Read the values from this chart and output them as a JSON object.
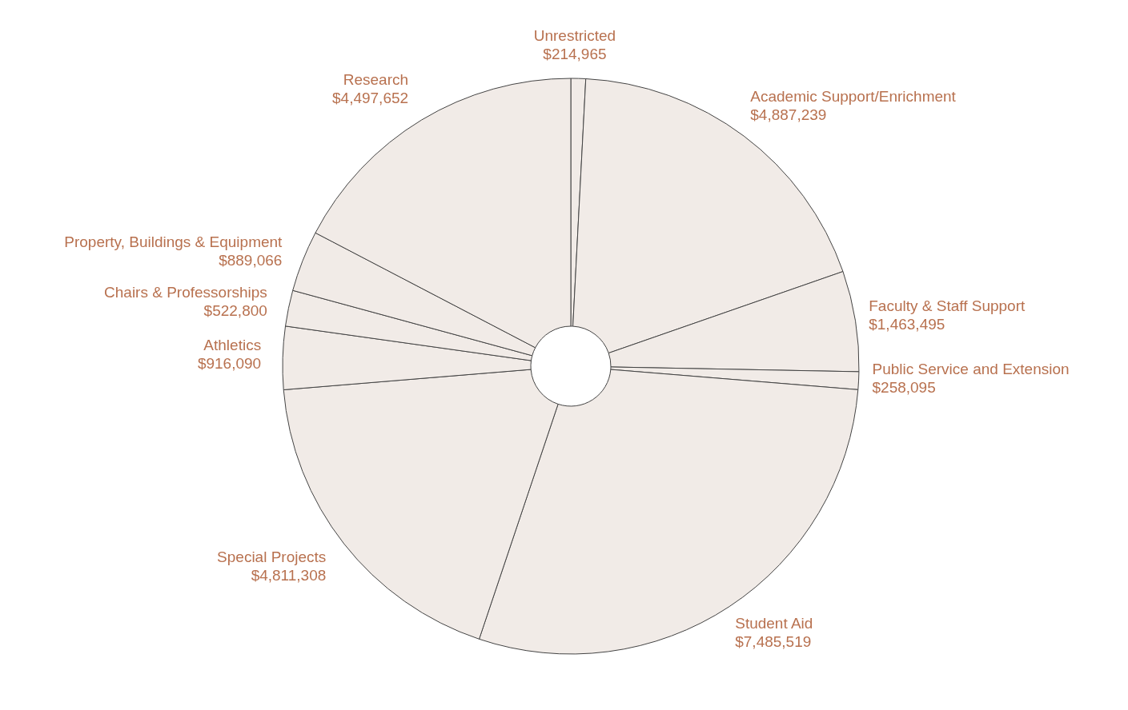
{
  "chart_data": {
    "type": "donut",
    "categories": [
      "Unrestricted",
      "Academic Support/Enrichment",
      "Faculty & Staff Support",
      "Public Service and Extension",
      "Student Aid",
      "Special Projects",
      "Athletics",
      "Chairs & Professorships",
      "Property, Buildings & Equipment",
      "Research"
    ],
    "values": [
      214965,
      4887239,
      1463495,
      258095,
      7485519,
      4811308,
      916090,
      522800,
      889066,
      4497652
    ],
    "value_labels": [
      "$214,965",
      "$4,887,239",
      "$1,463,495",
      "$258,095",
      "$7,485,519",
      "$4,811,308",
      "$916,090",
      "$522,800",
      "$889,066",
      "$4,497,652"
    ],
    "colors": [
      "#f1ebe7",
      "#f1ebe7",
      "#f1ebe7",
      "#f1ebe7",
      "#f1ebe7",
      "#f1ebe7",
      "#f1ebe7",
      "#f1ebe7",
      "#f1ebe7",
      "#f1ebe7"
    ]
  }
}
